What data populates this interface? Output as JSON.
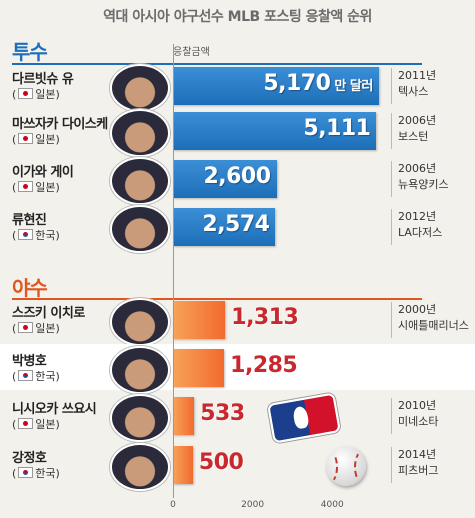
{
  "title": "역대 아시아 야구선수 MLB 포스팅 응찰액 순위",
  "sections": {
    "pitcher": "투수",
    "batter": "야수"
  },
  "axis_caption": "응찰금액",
  "unit": "만 달러",
  "colors": {
    "pitcher_bar": "#1d6eb8",
    "batter_bar": "#f26a2e",
    "pitcher_label": "#ffffff",
    "batter_label": "#c8282e",
    "pitcher_section": "#1d6eb8",
    "batter_section": "#e2551f"
  },
  "icons": [
    "japan-flag-icon",
    "korea-flag-icon",
    "mlb-logo-icon",
    "baseball-icon",
    "player-photo-icon"
  ],
  "players": [
    {
      "name": "다르빗슈 유",
      "country": "일본",
      "flag": "jp",
      "value": 5170,
      "label": "5,170",
      "year": "2011년",
      "team": "텍사스",
      "group": "pitcher"
    },
    {
      "name": "마쓰자카 다이스케",
      "country": "일본",
      "flag": "jp",
      "value": 5111,
      "label": "5,111",
      "year": "2006년",
      "team": "보스턴",
      "group": "pitcher"
    },
    {
      "name": "이가와 게이",
      "country": "일본",
      "flag": "jp",
      "value": 2600,
      "label": "2,600",
      "year": "2006년",
      "team": "뉴욕양키스",
      "group": "pitcher"
    },
    {
      "name": "류현진",
      "country": "한국",
      "flag": "kr",
      "value": 2574,
      "label": "2,574",
      "year": "2012년",
      "team": "LA다저스",
      "group": "pitcher"
    },
    {
      "name": "스즈키 이치로",
      "country": "일본",
      "flag": "jp",
      "value": 1313,
      "label": "1,313",
      "year": "2000년",
      "team": "시애틀매리너스",
      "group": "batter"
    },
    {
      "name": "박병호",
      "country": "한국",
      "flag": "kr",
      "value": 1285,
      "label": "1,285",
      "year": "",
      "team": "",
      "group": "batter"
    },
    {
      "name": "니시오카 쓰요시",
      "country": "일본",
      "flag": "jp",
      "value": 533,
      "label": "533",
      "year": "2010년",
      "team": "미네소타",
      "group": "batter"
    },
    {
      "name": "강정호",
      "country": "한국",
      "flag": "kr",
      "value": 500,
      "label": "500",
      "year": "2014년",
      "team": "피츠버그",
      "group": "batter"
    }
  ],
  "chart_data": {
    "type": "bar",
    "title": "역대 아시아 야구선수 MLB 포스팅 응찰액 순위",
    "ylabel": "응찰금액",
    "unit": "만 달러",
    "orientation": "horizontal",
    "categories": [
      "다르빗슈 유",
      "마쓰자카 다이스케",
      "이가와 게이",
      "류현진",
      "스즈키 이치로",
      "박병호",
      "니시오카 쓰요시",
      "강정호"
    ],
    "values": [
      5170,
      5111,
      2600,
      2574,
      1313,
      1285,
      533,
      500
    ],
    "xlim": [
      0,
      5400
    ],
    "xticks": [
      "0",
      "2000",
      "4000"
    ],
    "grid": false
  }
}
